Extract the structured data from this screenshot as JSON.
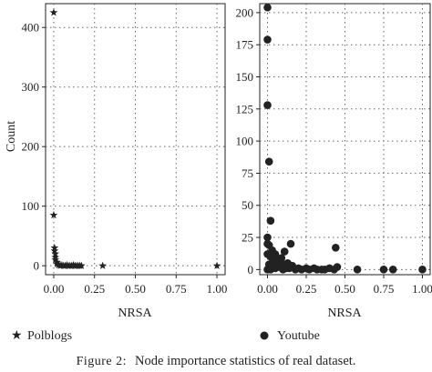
{
  "figure": {
    "caption_label": "Figure 2:",
    "caption_text": "Node importance statistics of real dataset."
  },
  "shared": {
    "ylabel": "Count"
  },
  "chart_data": [
    {
      "type": "scatter",
      "xlabel": "NRSA",
      "xlim": [
        -0.05,
        1.05
      ],
      "ylim": [
        -15,
        440
      ],
      "xticks": [
        "0.00",
        "0.25",
        "0.50",
        "0.75",
        "1.00"
      ],
      "xtick_values": [
        0,
        0.25,
        0.5,
        0.75,
        1.0
      ],
      "yticks": [
        "0",
        "100",
        "200",
        "300",
        "400"
      ],
      "ytick_values": [
        0,
        100,
        200,
        300,
        400
      ],
      "grid": true,
      "marker": "star",
      "color": "#222222",
      "legend": {
        "label": "Polblogs",
        "placement": "bottom-left"
      },
      "series": [
        {
          "name": "Polblogs",
          "x": [
            0.0,
            0.0,
            0.005,
            0.005,
            0.01,
            0.01,
            0.01,
            0.02,
            0.02,
            0.03,
            0.03,
            0.04,
            0.05,
            0.06,
            0.07,
            0.08,
            0.09,
            0.1,
            0.11,
            0.12,
            0.13,
            0.14,
            0.15,
            0.16,
            0.17,
            0.3,
            1.0
          ],
          "y": [
            425,
            85,
            30,
            25,
            20,
            14,
            10,
            6,
            3,
            2,
            1,
            0,
            1,
            0,
            0,
            1,
            0,
            0,
            0,
            1,
            0,
            0,
            0,
            0,
            0,
            0,
            0
          ]
        }
      ]
    },
    {
      "type": "scatter",
      "xlabel": "NRSA",
      "xlim": [
        -0.05,
        1.05
      ],
      "ylim": [
        -4,
        207
      ],
      "xticks": [
        "0.00",
        "0.25",
        "0.50",
        "0.75",
        "1.00"
      ],
      "xtick_values": [
        0,
        0.25,
        0.5,
        0.75,
        1.0
      ],
      "yticks": [
        "0",
        "25",
        "50",
        "75",
        "100",
        "125",
        "150",
        "175",
        "200"
      ],
      "ytick_values": [
        0,
        25,
        50,
        75,
        100,
        125,
        150,
        175,
        200
      ],
      "grid": true,
      "marker": "circle",
      "color": "#222222",
      "legend": {
        "label": "Youtube",
        "placement": "bottom-left"
      },
      "series": [
        {
          "name": "Youtube",
          "x": [
            0.0,
            0.0,
            0.0,
            0.01,
            0.02,
            0.0,
            0.0,
            0.01,
            0.0,
            0.02,
            0.03,
            0.05,
            0.07,
            0.09,
            0.11,
            0.15,
            0.08,
            0.1,
            0.13,
            0.04,
            0.06,
            0.12,
            0.16,
            0.2,
            0.25,
            0.3,
            0.35,
            0.4,
            0.45,
            0.44,
            0.0,
            0.02,
            0.05,
            0.1,
            0.14,
            0.18,
            0.22,
            0.27,
            0.32,
            0.37,
            0.43,
            0.01,
            0.03,
            0.07,
            0.12,
            0.58,
            0.75,
            0.81,
            1.0
          ],
          "y": [
            204,
            179,
            128,
            84,
            38,
            25,
            20,
            19,
            12,
            10,
            15,
            12,
            8,
            9,
            14,
            20,
            6,
            4,
            5,
            7,
            3,
            2,
            3,
            1,
            1,
            1,
            0,
            1,
            2,
            17,
            0,
            0,
            1,
            0,
            1,
            0,
            0,
            0,
            0,
            0,
            0,
            4,
            5,
            2,
            1,
            0,
            0,
            0,
            0
          ]
        }
      ]
    }
  ]
}
